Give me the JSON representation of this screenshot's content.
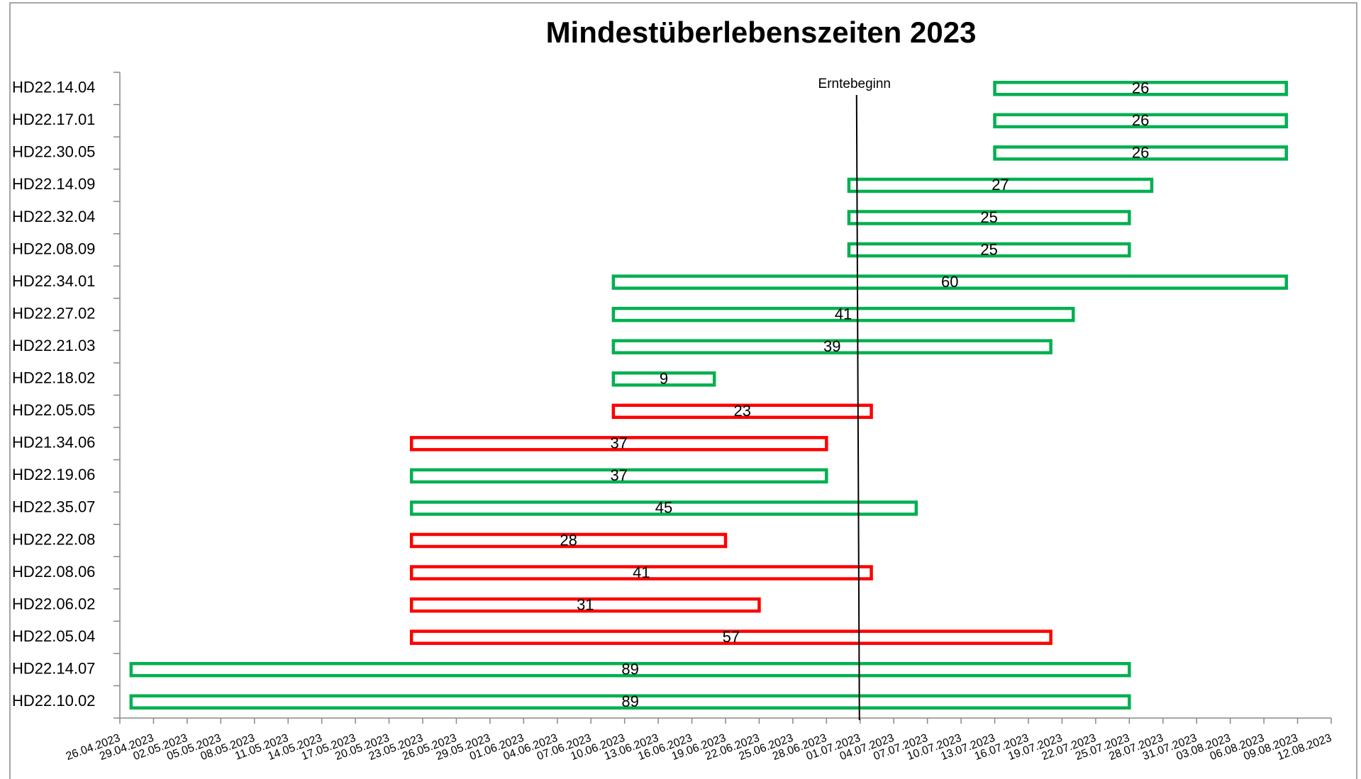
{
  "chart_data": {
    "type": "gantt",
    "title": "Mindestüberlebenszeiten 2023",
    "categories": [
      "HD22.14.04",
      "HD22.17.01",
      "HD22.30.05",
      "HD22.14.09",
      "HD22.32.04",
      "HD22.08.09",
      "HD22.34.01",
      "HD22.27.02",
      "HD22.21.03",
      "HD22.18.02",
      "HD22.05.05",
      "HD21.34.06",
      "HD22.19.06",
      "HD22.35.07",
      "HD22.22.08",
      "HD22.08.06",
      "HD22.06.02",
      "HD22.05.04",
      "HD22.14.07",
      "HD22.10.02"
    ],
    "starts": [
      "13.07.2023",
      "13.07.2023",
      "13.07.2023",
      "30.06.2023",
      "30.06.2023",
      "30.06.2023",
      "09.06.2023",
      "09.06.2023",
      "09.06.2023",
      "09.06.2023",
      "09.06.2023",
      "22.05.2023",
      "22.05.2023",
      "22.05.2023",
      "22.05.2023",
      "22.05.2023",
      "22.05.2023",
      "22.05.2023",
      "27.04.2023",
      "27.04.2023"
    ],
    "values": [
      26,
      26,
      26,
      27,
      25,
      25,
      60,
      41,
      39,
      9,
      23,
      37,
      37,
      45,
      28,
      41,
      31,
      57,
      89,
      89
    ],
    "colors": [
      "#00b050",
      "#00b050",
      "#00b050",
      "#00b050",
      "#00b050",
      "#00b050",
      "#00b050",
      "#00b050",
      "#00b050",
      "#00b050",
      "#ff0000",
      "#ff0000",
      "#00b050",
      "#00b050",
      "#ff0000",
      "#ff0000",
      "#ff0000",
      "#ff0000",
      "#00b050",
      "#00b050"
    ],
    "xlim": [
      "26.04.2023",
      "12.08.2023"
    ],
    "xticks": [
      "26.04.2023",
      "29.04.2023",
      "02.05.2023",
      "05.05.2023",
      "08.05.2023",
      "11.05.2023",
      "14.05.2023",
      "17.05.2023",
      "20.05.2023",
      "23.05.2023",
      "26.05.2023",
      "29.05.2023",
      "01.06.2023",
      "04.06.2023",
      "07.06.2023",
      "10.06.2023",
      "13.06.2023",
      "16.06.2023",
      "19.06.2023",
      "22.06.2023",
      "25.06.2023",
      "28.06.2023",
      "01.07.2023",
      "04.07.2023",
      "07.07.2023",
      "10.07.2023",
      "13.07.2023",
      "16.07.2023",
      "19.07.2023",
      "22.07.2023",
      "25.07.2023",
      "28.07.2023",
      "31.07.2023",
      "03.08.2023",
      "06.08.2023",
      "09.08.2023",
      "12.08.2023"
    ],
    "annotation": {
      "text": "Erntebeginn",
      "x": "01.07.2023"
    }
  }
}
